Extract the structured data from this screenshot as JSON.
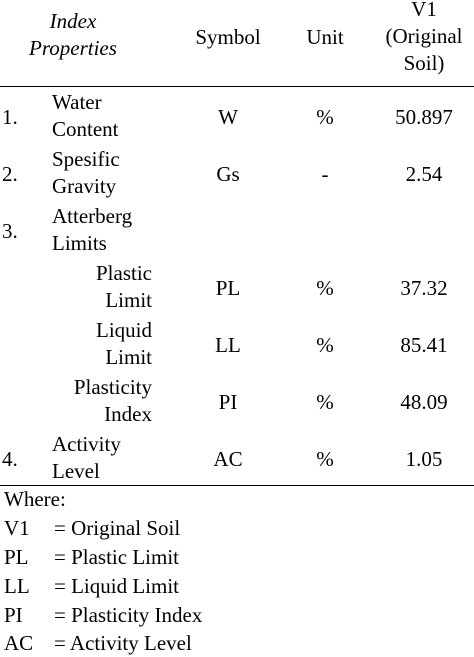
{
  "header": {
    "properties": [
      "Index",
      "Properties"
    ],
    "symbol": "Symbol",
    "unit": "Unit",
    "value": [
      "V1",
      "(Original",
      "Soil)"
    ]
  },
  "rows": [
    {
      "num": "1.",
      "name": [
        "Water",
        "Content"
      ],
      "symbol": "W",
      "unit": "%",
      "value": "50.897"
    },
    {
      "num": "2.",
      "name": [
        "Spesific",
        "Gravity"
      ],
      "symbol": "Gs",
      "unit": "-",
      "value": "2.54"
    },
    {
      "num": "3.",
      "name": [
        "Atterberg",
        "Limits"
      ],
      "symbol": "",
      "unit": "",
      "value": ""
    },
    {
      "num": "",
      "name": [
        "Plastic",
        "Limit"
      ],
      "symbol": "PL",
      "unit": "%",
      "value": "37.32"
    },
    {
      "num": "",
      "name": [
        "Liquid",
        "Limit"
      ],
      "symbol": "LL",
      "unit": "%",
      "value": "85.41"
    },
    {
      "num": "",
      "name": [
        "Plasticity",
        "Index"
      ],
      "symbol": "PI",
      "unit": "%",
      "value": "48.09"
    },
    {
      "num": "4.",
      "name": [
        "Activity",
        "Level"
      ],
      "symbol": "AC",
      "unit": "%",
      "value": "1.05"
    }
  ],
  "legend": {
    "title": "Where:",
    "items": [
      {
        "abbr": "V1",
        "desc": "= Original Soil"
      },
      {
        "abbr": "PL",
        "desc": "= Plastic Limit"
      },
      {
        "abbr": "LL",
        "desc": "= Liquid Limit"
      },
      {
        "abbr": "PI",
        "desc": "= Plasticity Index"
      },
      {
        "abbr": "AC",
        "desc": "= Activity Level"
      }
    ]
  }
}
